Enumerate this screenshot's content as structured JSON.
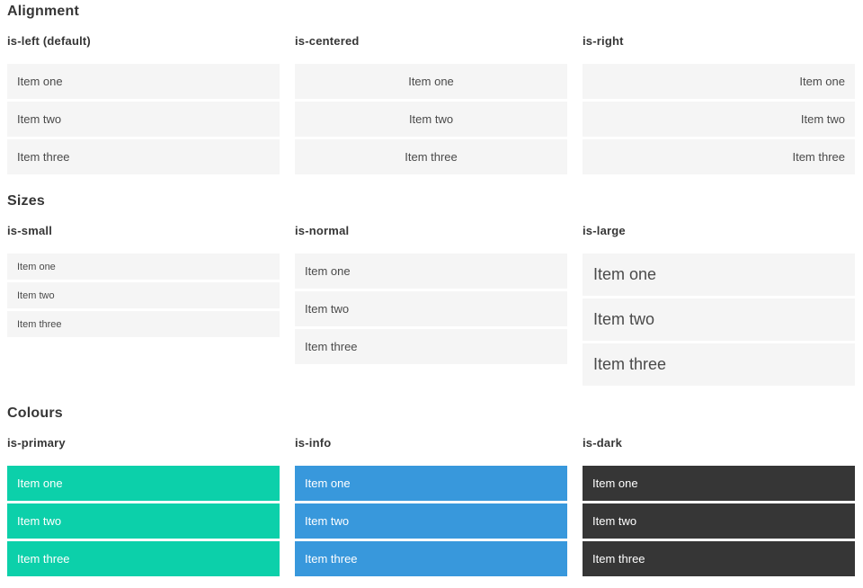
{
  "colors": {
    "page_background": "#ffffff",
    "heading_text": "#363636",
    "item_background": "#f5f5f5",
    "item_text": "#4a4a4a",
    "primary": "#0cd0aa",
    "info": "#3898dc",
    "dark": "#363636",
    "on_color_text": "#ffffff"
  },
  "sections": [
    {
      "title": "Alignment",
      "columns": [
        {
          "heading": "is-left (default)",
          "variant": "left",
          "items": [
            "Item one",
            "Item two",
            "Item three"
          ]
        },
        {
          "heading": "is-centered",
          "variant": "centered",
          "items": [
            "Item one",
            "Item two",
            "Item three"
          ]
        },
        {
          "heading": "is-right",
          "variant": "right",
          "items": [
            "Item one",
            "Item two",
            "Item three"
          ]
        }
      ]
    },
    {
      "title": "Sizes",
      "columns": [
        {
          "heading": "is-small",
          "variant": "small",
          "items": [
            "Item one",
            "Item two",
            "Item three"
          ]
        },
        {
          "heading": "is-normal",
          "variant": "normal",
          "items": [
            "Item one",
            "Item two",
            "Item three"
          ]
        },
        {
          "heading": "is-large",
          "variant": "large",
          "items": [
            "Item one",
            "Item two",
            "Item three"
          ]
        }
      ]
    },
    {
      "title": "Colours",
      "columns": [
        {
          "heading": "is-primary",
          "variant": "primary",
          "items": [
            "Item one",
            "Item two",
            "Item three"
          ]
        },
        {
          "heading": "is-info",
          "variant": "info",
          "items": [
            "Item one",
            "Item two",
            "Item three"
          ]
        },
        {
          "heading": "is-dark",
          "variant": "dark",
          "items": [
            "Item one",
            "Item two",
            "Item three"
          ]
        }
      ]
    }
  ]
}
